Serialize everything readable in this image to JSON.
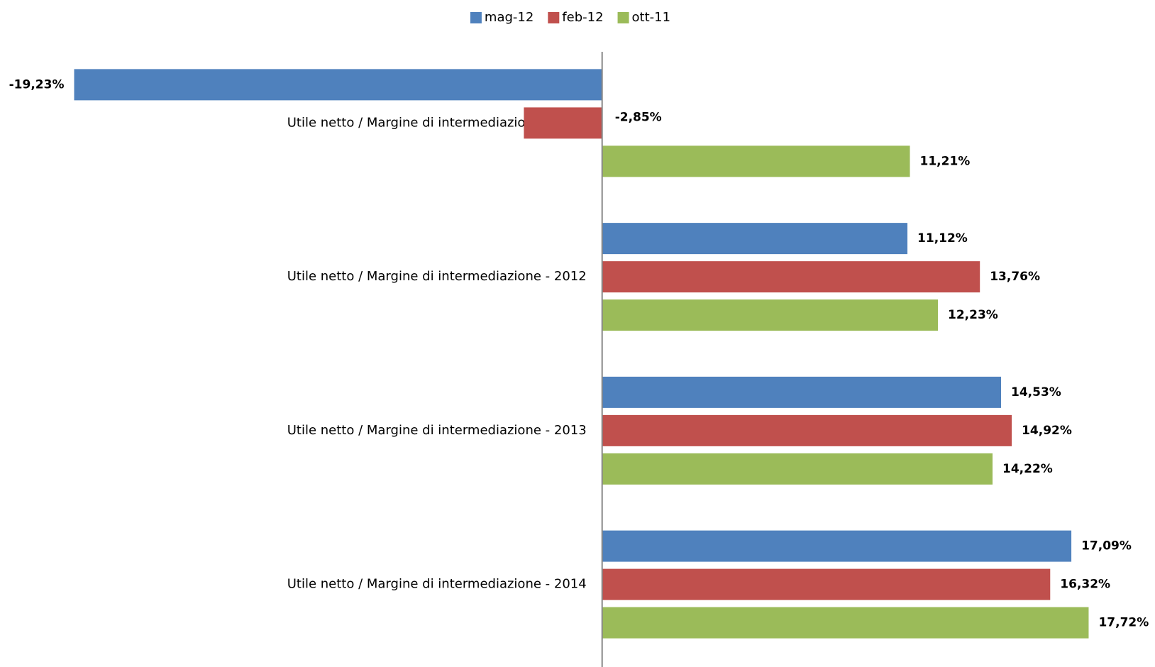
{
  "chart_data": {
    "type": "hbar",
    "categories": [
      "Utile netto / Margine di intermediazione - 2011",
      "Utile netto / Margine di intermediazione - 2012",
      "Utile netto / Margine di intermediazione - 2013",
      "Utile netto / Margine di intermediazione - 2014"
    ],
    "series": [
      {
        "name": "mag-12",
        "color": "#4f81bd",
        "values": [
          -19.23,
          11.12,
          14.53,
          17.09
        ],
        "value_labels": [
          "-19,23%",
          "11,12%",
          "14,53%",
          "17,09%"
        ]
      },
      {
        "name": "feb-12",
        "color": "#c0504d",
        "values": [
          -2.85,
          13.76,
          14.92,
          16.32
        ],
        "value_labels": [
          "-2,85%",
          "13,76%",
          "14,92%",
          "16,32%"
        ]
      },
      {
        "name": "ott-11",
        "color": "#9bbb59",
        "values": [
          11.21,
          12.23,
          14.22,
          17.72
        ],
        "value_labels": [
          "11,21%",
          "12,23%",
          "14,22%",
          "17,72%"
        ]
      }
    ],
    "xlim": [
      -21,
      19
    ],
    "legend": "top"
  }
}
